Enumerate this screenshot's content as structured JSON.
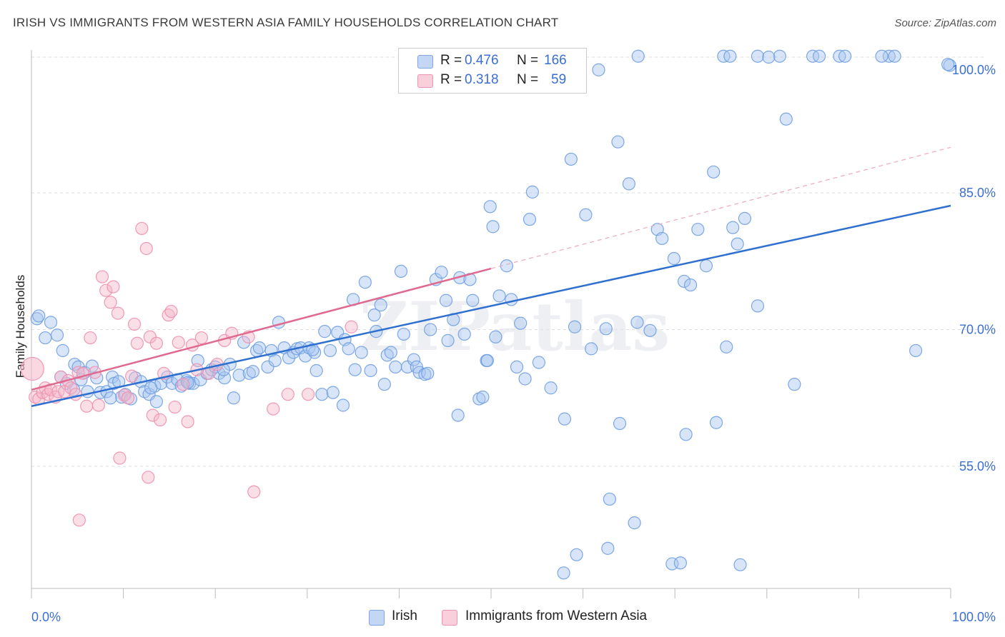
{
  "header": {
    "title": "IRISH VS IMMIGRANTS FROM WESTERN ASIA FAMILY HOUSEHOLDS CORRELATION CHART",
    "source": "Source: ZipAtlas.com"
  },
  "watermark": "ZIPatlas",
  "legend": {
    "r_label": "R =",
    "n_label": "N =",
    "rows": [
      {
        "r": "0.476",
        "n": "166",
        "color": "#a9c6f0"
      },
      {
        "r": "0.318",
        "n": "59",
        "color": "#f5b8ca"
      }
    ]
  },
  "bottom_legend": [
    {
      "label": "Irish",
      "color": "#a9c6f0"
    },
    {
      "label": "Immigrants from Western Asia",
      "color": "#f5b8ca"
    }
  ],
  "chart_data": {
    "type": "scatter",
    "title": "IRISH VS IMMIGRANTS FROM WESTERN ASIA FAMILY HOUSEHOLDS CORRELATION CHART",
    "xlabel": "",
    "ylabel": "Family Households",
    "xlim": [
      0,
      100
    ],
    "ylim": [
      40,
      102
    ],
    "x_tick_labels": [
      "0.0%",
      "100.0%"
    ],
    "y_ticks": [
      {
        "value": 100,
        "label": "100.0%"
      },
      {
        "value": 85,
        "label": "85.0%"
      },
      {
        "value": 70,
        "label": "70.0%"
      },
      {
        "value": 55,
        "label": "55.0%"
      }
    ],
    "grid": true,
    "series": [
      {
        "name": "Irish",
        "color": "#6f9fe2",
        "fill": "#a9c6f0",
        "trend": {
          "x0": 0,
          "y0": 61.6,
          "x1": 100,
          "y1": 83.6,
          "style": "solid",
          "stroke": "#2f6fd0"
        },
        "points": [
          [
            0.6,
            71.2
          ],
          [
            0.8,
            71.5
          ],
          [
            1.5,
            69.1
          ],
          [
            2.1,
            70.8
          ],
          [
            2.8,
            69.4
          ],
          [
            3.4,
            67.7
          ],
          [
            3.8,
            64.1
          ],
          [
            4.6,
            63.4
          ],
          [
            4.7,
            66.2
          ],
          [
            5.1,
            65.9
          ],
          [
            5.8,
            65.3
          ],
          [
            6.1,
            63.2
          ],
          [
            6.6,
            66.0
          ],
          [
            7.1,
            64.7
          ],
          [
            7.5,
            63.1
          ],
          [
            8.2,
            63.2
          ],
          [
            8.8,
            64.8
          ],
          [
            9.0,
            64.1
          ],
          [
            9.5,
            64.3
          ],
          [
            9.8,
            62.6
          ],
          [
            10.2,
            62.9
          ],
          [
            10.8,
            62.4
          ],
          [
            11.3,
            64.7
          ],
          [
            11.9,
            64.3
          ],
          [
            12.3,
            63.2
          ],
          [
            12.8,
            62.9
          ],
          [
            13.4,
            63.8
          ],
          [
            13.6,
            62.1
          ],
          [
            14.1,
            64.1
          ],
          [
            14.8,
            64.8
          ],
          [
            15.3,
            64.1
          ],
          [
            15.9,
            64.5
          ],
          [
            16.3,
            63.8
          ],
          [
            16.9,
            64.4
          ],
          [
            17.2,
            64.1
          ],
          [
            17.6,
            64.1
          ],
          [
            18.1,
            66.6
          ],
          [
            18.4,
            64.5
          ],
          [
            19.1,
            65.2
          ],
          [
            19.6,
            65.6
          ],
          [
            20.0,
            65.9
          ],
          [
            20.4,
            65.2
          ],
          [
            21.0,
            64.7
          ],
          [
            21.6,
            66.2
          ],
          [
            22.0,
            62.5
          ],
          [
            22.6,
            65.0
          ],
          [
            23.1,
            68.6
          ],
          [
            23.7,
            65.2
          ],
          [
            24.1,
            65.4
          ],
          [
            24.5,
            67.7
          ],
          [
            24.8,
            68.0
          ],
          [
            25.7,
            65.9
          ],
          [
            26.1,
            67.7
          ],
          [
            26.5,
            66.6
          ],
          [
            26.9,
            70.8
          ],
          [
            27.5,
            68.0
          ],
          [
            28.0,
            66.9
          ],
          [
            28.5,
            67.5
          ],
          [
            28.9,
            67.9
          ],
          [
            29.3,
            68.0
          ],
          [
            29.8,
            67.1
          ],
          [
            30.2,
            68.0
          ],
          [
            30.8,
            67.5
          ],
          [
            31.0,
            65.5
          ],
          [
            31.6,
            62.9
          ],
          [
            31.9,
            69.8
          ],
          [
            32.5,
            67.7
          ],
          [
            32.8,
            63.1
          ],
          [
            33.3,
            69.7
          ],
          [
            33.9,
            61.7
          ],
          [
            34.1,
            68.9
          ],
          [
            34.5,
            67.9
          ],
          [
            35.0,
            73.3
          ],
          [
            35.2,
            65.6
          ],
          [
            35.9,
            67.5
          ],
          [
            36.3,
            75.2
          ],
          [
            36.9,
            65.5
          ],
          [
            37.3,
            71.6
          ],
          [
            37.5,
            69.8
          ],
          [
            38.0,
            72.7
          ],
          [
            38.4,
            64.0
          ],
          [
            38.7,
            67.2
          ],
          [
            39.1,
            67.5
          ],
          [
            39.6,
            65.9
          ],
          [
            40.2,
            76.4
          ],
          [
            40.5,
            69.5
          ],
          [
            40.9,
            65.9
          ],
          [
            41.6,
            66.7
          ],
          [
            41.9,
            65.9
          ],
          [
            42.2,
            65.3
          ],
          [
            42.8,
            65.1
          ],
          [
            43.1,
            65.2
          ],
          [
            43.4,
            70.0
          ],
          [
            44.0,
            75.5
          ],
          [
            44.6,
            76.3
          ],
          [
            45.1,
            73.2
          ],
          [
            45.3,
            68.8
          ],
          [
            45.9,
            71.1
          ],
          [
            46.6,
            75.7
          ],
          [
            47.1,
            69.5
          ],
          [
            47.7,
            75.5
          ],
          [
            48.0,
            73.2
          ],
          [
            48.7,
            62.4
          ],
          [
            49.1,
            62.6
          ],
          [
            49.5,
            66.6
          ],
          [
            49.9,
            83.5
          ],
          [
            50.2,
            81.3
          ],
          [
            50.5,
            69.2
          ],
          [
            50.9,
            73.7
          ],
          [
            51.7,
            77.0
          ],
          [
            52.2,
            73.3
          ],
          [
            52.8,
            65.9
          ],
          [
            53.2,
            70.7
          ],
          [
            53.7,
            64.6
          ],
          [
            54.2,
            82.1
          ],
          [
            54.5,
            85.1
          ],
          [
            55.2,
            66.4
          ],
          [
            56.5,
            63.6
          ],
          [
            58.0,
            60.2
          ],
          [
            58.7,
            88.7
          ],
          [
            59.1,
            70.3
          ],
          [
            60.3,
            82.6
          ],
          [
            60.9,
            67.9
          ],
          [
            61.7,
            98.5
          ],
          [
            62.5,
            70.1
          ],
          [
            63.8,
            90.6
          ],
          [
            65.0,
            86.0
          ],
          [
            65.9,
            70.8
          ],
          [
            67.3,
            69.9
          ],
          [
            68.1,
            81.0
          ],
          [
            68.6,
            80.0
          ],
          [
            69.9,
            77.8
          ],
          [
            71.0,
            75.3
          ],
          [
            71.7,
            74.9
          ],
          [
            72.5,
            81.0
          ],
          [
            73.4,
            77.0
          ],
          [
            74.2,
            87.3
          ],
          [
            75.6,
            68.1
          ],
          [
            76.3,
            81.2
          ],
          [
            76.8,
            79.4
          ],
          [
            77.6,
            82.2
          ],
          [
            79.0,
            72.6
          ],
          [
            81.4,
            100.0
          ],
          [
            82.1,
            93.1
          ],
          [
            83.0,
            64.0
          ],
          [
            85.0,
            100.0
          ],
          [
            85.7,
            100.0
          ],
          [
            87.9,
            100.0
          ],
          [
            88.5,
            100.0
          ],
          [
            93.3,
            100.0
          ],
          [
            93.9,
            100.0
          ],
          [
            96.2,
            67.7
          ],
          [
            99.9,
            99.0
          ],
          [
            99.7,
            99.1
          ],
          [
            66.0,
            100.0
          ],
          [
            75.3,
            100.0
          ],
          [
            62.9,
            51.4
          ],
          [
            59.3,
            45.3
          ],
          [
            57.9,
            43.3
          ],
          [
            65.6,
            48.8
          ],
          [
            69.7,
            44.3
          ],
          [
            70.6,
            44.4
          ],
          [
            71.2,
            58.5
          ],
          [
            74.5,
            59.8
          ],
          [
            64.0,
            59.7
          ],
          [
            62.7,
            46.0
          ],
          [
            77.1,
            44.2
          ],
          [
            76.0,
            100.0
          ],
          [
            79.0,
            100.0
          ],
          [
            80.2,
            99.9
          ],
          [
            92.5,
            100.0
          ],
          [
            46.4,
            60.6
          ],
          [
            49.6,
            66.6
          ],
          [
            30.6,
            67.8
          ],
          [
            20.9,
            65.6
          ],
          [
            17.0,
            64.2
          ],
          [
            13.0,
            63.6
          ],
          [
            8.6,
            62.5
          ],
          [
            5.4,
            64.5
          ],
          [
            3.2,
            64.8
          ]
        ]
      },
      {
        "name": "Immigrants from Western Asia",
        "color": "#ef8fae",
        "fill": "#f5b8ca",
        "trend": {
          "x0": 0,
          "y0": 63.4,
          "x1": 50,
          "y1": 76.7,
          "x_dash_end": 100,
          "y_dash_end": 90.0,
          "style": "solid-then-dashed",
          "stroke": "#e0698f"
        },
        "points": [
          [
            0.1,
            65.7
          ],
          [
            0.4,
            62.6
          ],
          [
            0.8,
            62.4
          ],
          [
            1.2,
            63.1
          ],
          [
            1.5,
            63.6
          ],
          [
            1.8,
            62.9
          ],
          [
            2.1,
            63.4
          ],
          [
            2.6,
            62.6
          ],
          [
            2.9,
            63.2
          ],
          [
            3.2,
            64.8
          ],
          [
            3.6,
            63.2
          ],
          [
            4.0,
            64.4
          ],
          [
            4.3,
            63.6
          ],
          [
            4.8,
            62.9
          ],
          [
            5.1,
            65.3
          ],
          [
            5.6,
            65.2
          ],
          [
            6.0,
            61.6
          ],
          [
            6.4,
            69.1
          ],
          [
            6.9,
            65.3
          ],
          [
            7.3,
            61.7
          ],
          [
            7.7,
            75.8
          ],
          [
            8.1,
            74.3
          ],
          [
            8.6,
            73.0
          ],
          [
            8.9,
            74.7
          ],
          [
            9.4,
            71.8
          ],
          [
            9.6,
            55.9
          ],
          [
            10.1,
            62.8
          ],
          [
            10.5,
            62.5
          ],
          [
            10.9,
            64.9
          ],
          [
            11.2,
            70.6
          ],
          [
            11.5,
            68.5
          ],
          [
            12.0,
            81.1
          ],
          [
            12.5,
            78.9
          ],
          [
            12.9,
            69.2
          ],
          [
            13.2,
            60.6
          ],
          [
            13.6,
            68.5
          ],
          [
            14.0,
            60.1
          ],
          [
            14.4,
            65.2
          ],
          [
            14.9,
            71.6
          ],
          [
            15.2,
            72.0
          ],
          [
            15.6,
            61.5
          ],
          [
            16.0,
            68.6
          ],
          [
            16.5,
            64.0
          ],
          [
            17.0,
            59.9
          ],
          [
            17.5,
            68.3
          ],
          [
            18.0,
            65.6
          ],
          [
            18.5,
            69.1
          ],
          [
            19.3,
            65.2
          ],
          [
            20.2,
            66.2
          ],
          [
            21.0,
            68.8
          ],
          [
            21.8,
            69.6
          ],
          [
            23.6,
            69.2
          ],
          [
            26.3,
            61.3
          ],
          [
            27.9,
            62.9
          ],
          [
            30.1,
            62.9
          ],
          [
            34.8,
            70.3
          ],
          [
            5.2,
            49.1
          ],
          [
            12.7,
            53.8
          ],
          [
            24.2,
            52.2
          ]
        ]
      }
    ]
  }
}
